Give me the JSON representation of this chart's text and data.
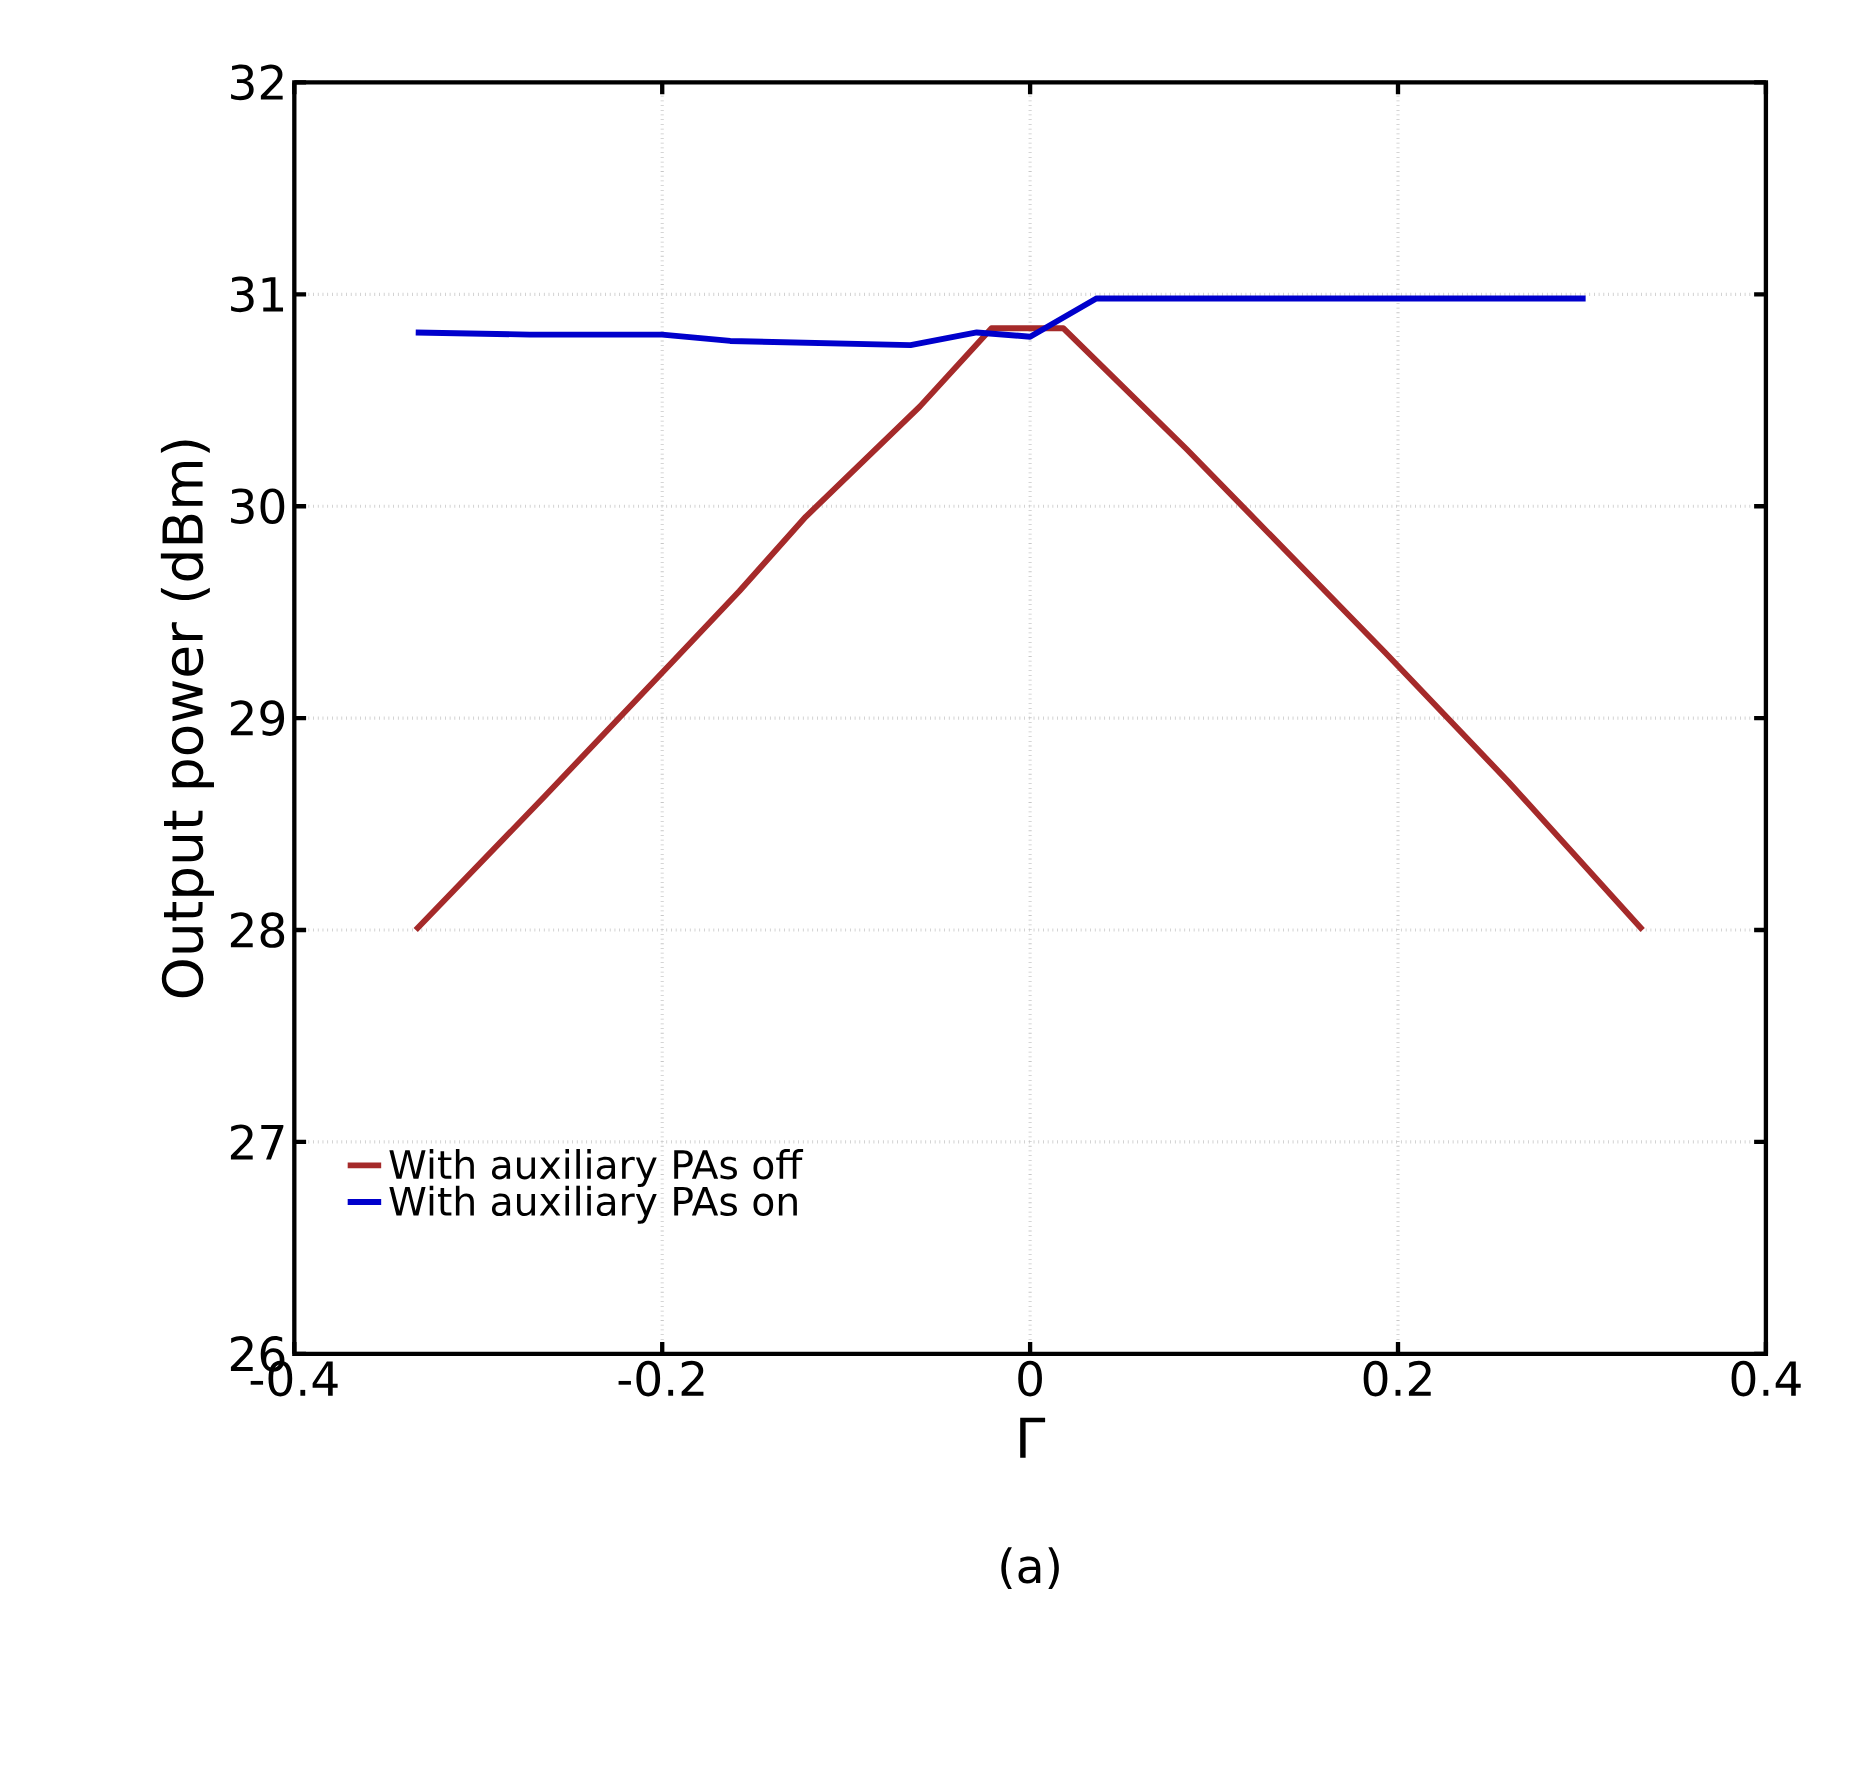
{
  "chart_data": {
    "type": "line",
    "xlabel": "Γ",
    "ylabel": "Output power (dBm)",
    "xlim": [
      -0.4,
      0.4
    ],
    "ylim": [
      26,
      32
    ],
    "xticks": [
      -0.4,
      -0.2,
      0,
      0.2,
      0.4
    ],
    "yticks": [
      26,
      27,
      28,
      29,
      30,
      31,
      32
    ],
    "grid": true,
    "legend": "bottom left",
    "line_style": "solid",
    "marker": "none",
    "annotations": [
      "(a)"
    ],
    "series": [
      {
        "name": "With auxiliary PAs off",
        "color": "#a52a2a",
        "x": [
          -0.334,
          -0.264,
          -0.194,
          -0.158,
          -0.122,
          -0.06,
          -0.021,
          0.018,
          0.085,
          0.193,
          0.26,
          0.333
        ],
        "values": [
          28,
          28.63,
          29.27,
          29.6,
          29.95,
          30.47,
          30.84,
          30.84,
          30.27,
          29.31,
          28.7,
          28
        ]
      },
      {
        "name": "With auxiliary PAs on",
        "color": "#0000cc",
        "x": [
          -0.334,
          -0.272,
          -0.2,
          -0.163,
          -0.065,
          -0.029,
          0,
          0.036,
          0.302
        ],
        "values": [
          30.82,
          30.81,
          30.81,
          30.78,
          30.76,
          30.82,
          30.8,
          30.98,
          30.98
        ]
      }
    ]
  }
}
